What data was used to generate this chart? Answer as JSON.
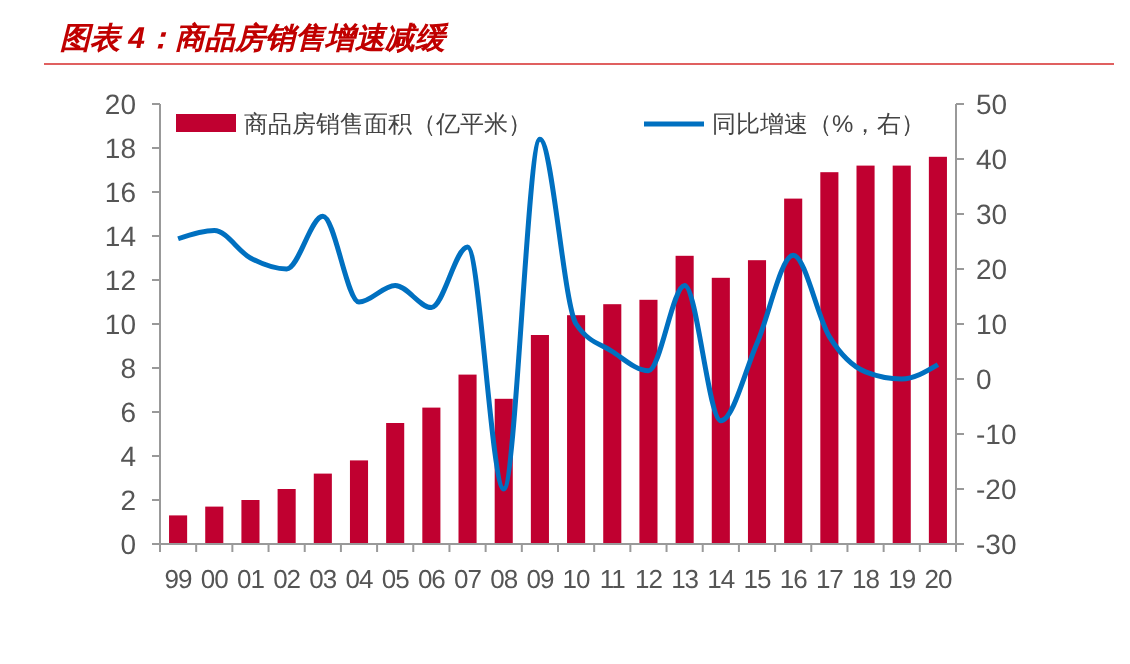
{
  "chart_data": {
    "type": "bar",
    "title": "图表 4：商品房销售增速减缓",
    "categories": [
      "99",
      "00",
      "01",
      "02",
      "03",
      "04",
      "05",
      "06",
      "07",
      "08",
      "09",
      "10",
      "11",
      "12",
      "13",
      "14",
      "15",
      "16",
      "17",
      "18",
      "19",
      "20"
    ],
    "series": [
      {
        "name": "商品房销售面积（亿平米）",
        "color": "#c00030",
        "values": [
          1.3,
          1.7,
          2.0,
          2.5,
          3.2,
          3.8,
          5.5,
          6.2,
          7.7,
          6.6,
          9.5,
          10.4,
          10.9,
          11.1,
          13.1,
          12.1,
          12.9,
          15.7,
          16.9,
          17.2,
          17.2,
          17.6
        ]
      },
      {
        "name": "同比增速（%，右）",
        "type": "line",
        "axis": "y2",
        "color": "#0070c0",
        "values": [
          25.5,
          27,
          22,
          20,
          29.6,
          14,
          17,
          13,
          24,
          -20,
          43.6,
          10,
          5,
          1.5,
          17,
          -7.6,
          6.5,
          22.5,
          7.7,
          1.3,
          0,
          2.6
        ]
      }
    ],
    "ylim": [
      0,
      20
    ],
    "yticks": [
      0,
      2,
      4,
      6,
      8,
      10,
      12,
      14,
      16,
      18,
      20
    ],
    "y2lim": [
      -30,
      50
    ],
    "y2ticks": [
      -30,
      -20,
      -10,
      0,
      10,
      20,
      30,
      40,
      50
    ],
    "grid": false,
    "legend": "top",
    "marker": "none",
    "line_style": "solid"
  }
}
